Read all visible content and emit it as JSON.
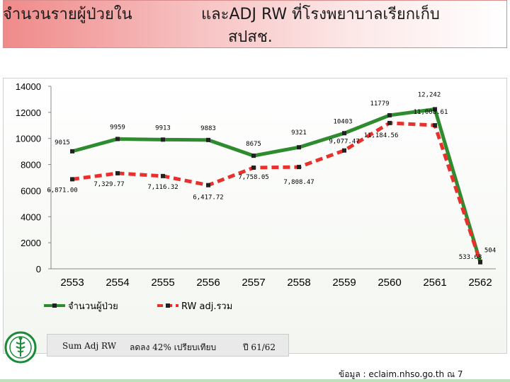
{
  "title": {
    "line1_left": "จำนวนรายผู้ป่วยใน",
    "line1_right": "และADJ RW ที่โรงพยาบาลเรียกเก็บ",
    "line2": "สปสช."
  },
  "colors": {
    "patients": "#2e8b2e",
    "rw": "#e8302c",
    "axis_text": "#000000"
  },
  "chart_data": {
    "type": "line",
    "x": [
      "2553",
      "2554",
      "2555",
      "2556",
      "2557",
      "2558",
      "2559",
      "2560",
      "2561",
      "2562"
    ],
    "ylim": [
      0,
      14000
    ],
    "yticks": [
      "0",
      "2000",
      "4000",
      "6000",
      "8000",
      "10000",
      "12000",
      "14000"
    ],
    "grid": false,
    "legend_position": "bottom",
    "series": [
      {
        "name": "จำนวนผู้ป่วย",
        "values": [
          9015,
          9959,
          9913,
          9883,
          8675,
          9321,
          10403,
          11779,
          12242,
          504
        ],
        "labels": [
          "9015",
          "9959",
          "9913",
          "9883",
          "8675",
          "9321",
          "10403",
          "11779",
          "12,242",
          "504"
        ],
        "color": "#2e8b2e"
      },
      {
        "name": "RW adj.รวม",
        "values": [
          6871.0,
          7329.77,
          7116.32,
          6417.72,
          7758.05,
          7808.47,
          9077.47,
          11184.56,
          11008.61,
          533.68
        ],
        "labels": [
          "6,871.00",
          "7,329.77",
          "7,116.32",
          "6,417.72",
          "7,758.05",
          "7,808.47",
          "9,077.47",
          "11,184.56",
          "11,008.61",
          "533.68"
        ],
        "color": "#e8302c"
      }
    ]
  },
  "footer": {
    "sum_label": "Sum Adj RW",
    "decrease_text": "ลดลง 42% เปรียบเทียบ",
    "year_text": "ปี 61/62",
    "source_text": "ข้อมูล : eclaim.nhso.go.th ณ 7"
  },
  "logo_icon": "ministry-of-public-health-seal"
}
